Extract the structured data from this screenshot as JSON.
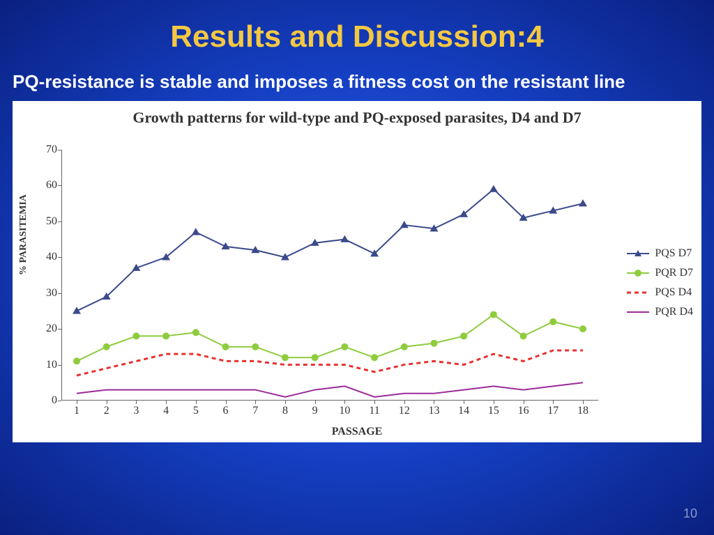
{
  "slide": {
    "title": "Results and Discussion:4",
    "subtitle": "PQ-resistance is stable and imposes a fitness cost on the resistant line",
    "page_number": "10",
    "title_color": "#f5c842",
    "subtitle_color": "#ffffff"
  },
  "chart": {
    "type": "line",
    "title": "Growth patterns for wild-type and PQ-exposed parasites, D4 and D7",
    "title_fontsize": 22,
    "background_color": "#ffffff",
    "x_categories": [
      1,
      2,
      3,
      4,
      5,
      6,
      7,
      8,
      9,
      10,
      11,
      12,
      13,
      14,
      15,
      16,
      17,
      18
    ],
    "xlabel": "PASSAGE",
    "ylabel": "% PARASITEMIA",
    "ylim": [
      0,
      70
    ],
    "ytick_step": 10,
    "yticks": [
      0,
      10,
      20,
      30,
      40,
      50,
      60,
      70
    ],
    "axis_color": "#666666",
    "label_fontsize": 14,
    "tick_fontsize": 16,
    "series": [
      {
        "name": "PQS D7",
        "color": "#3a4a8a",
        "marker": "triangle",
        "marker_size": 6,
        "line_width": 2,
        "dash": "none",
        "values": [
          25,
          29,
          37,
          40,
          47,
          43,
          42,
          40,
          44,
          45,
          41,
          49,
          48,
          52,
          59,
          51,
          53,
          55
        ]
      },
      {
        "name": "PQR D7",
        "color": "#8ecc3d",
        "marker": "circle",
        "marker_size": 5,
        "line_width": 2,
        "dash": "none",
        "values": [
          11,
          15,
          18,
          18,
          19,
          15,
          15,
          12,
          12,
          15,
          12,
          15,
          16,
          18,
          24,
          18,
          22,
          20
        ]
      },
      {
        "name": "PQS D4",
        "color": "#e83030",
        "marker": "dash",
        "marker_size": 0,
        "line_width": 3,
        "dash": "6,5",
        "values": [
          7,
          9,
          11,
          13,
          13,
          11,
          11,
          10,
          10,
          10,
          8,
          10,
          11,
          10,
          13,
          11,
          14,
          14
        ]
      },
      {
        "name": "PQR D4",
        "color": "#9a2a9a",
        "marker": "none",
        "marker_size": 0,
        "line_width": 2,
        "dash": "none",
        "values": [
          2,
          3,
          3,
          3,
          3,
          3,
          3,
          1,
          3,
          4,
          1,
          2,
          2,
          3,
          4,
          3,
          4,
          5
        ]
      }
    ],
    "legend_position": "right"
  }
}
